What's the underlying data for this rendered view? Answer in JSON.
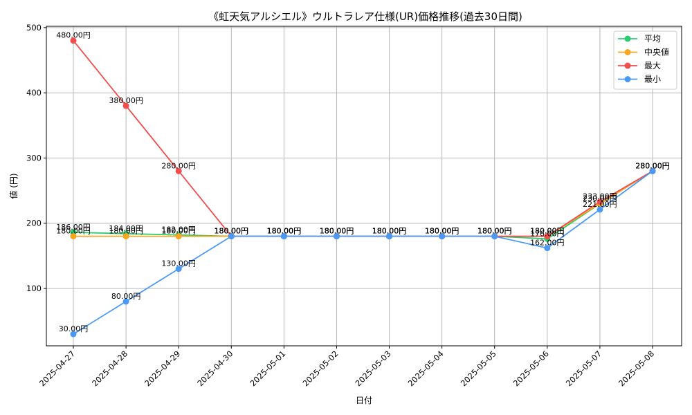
{
  "chart_data": {
    "type": "line",
    "title": "《虹天気アルシエル》ウルトラレア仕様(UR)価格推移(過去30日間)",
    "xlabel": "日付",
    "ylabel": "値 (円)",
    "ylim": [
      12,
      502
    ],
    "yticks": [
      100,
      200,
      300,
      400,
      500
    ],
    "grid": true,
    "legend_position": "top-right",
    "categories": [
      "2025-04-27",
      "2025-04-28",
      "2025-04-29",
      "2025-04-30",
      "2025-05-01",
      "2025-05-02",
      "2025-05-03",
      "2025-05-04",
      "2025-05-05",
      "2025-05-06",
      "2025-05-07",
      "2025-05-08"
    ],
    "series": [
      {
        "name": "平均",
        "color": "#2ecc71",
        "values": [
          186,
          184,
          182,
          180,
          180,
          180,
          180,
          180,
          180,
          176,
          230,
          280
        ],
        "labels": [
          "186.00円",
          "184.00円",
          "182.00円",
          "180.00円",
          "180.00円",
          "180.00円",
          "180.00円",
          "180.00円",
          "180.00円",
          "176.00円",
          "230.00円",
          "280.00円"
        ]
      },
      {
        "name": "中央値",
        "color": "#f5a623",
        "values": [
          180,
          180,
          180,
          180,
          180,
          180,
          180,
          180,
          180,
          180,
          230,
          280
        ],
        "labels": [
          "180.00円",
          "180.00円",
          "180.00円",
          "180.00円",
          "180.00円",
          "180.00円",
          "180.00円",
          "180.00円",
          "180.00円",
          "180.00円",
          "230.00円",
          "280.00円"
        ]
      },
      {
        "name": "最大",
        "color": "#f04e4e",
        "values": [
          480,
          380,
          280,
          180,
          180,
          180,
          180,
          180,
          180,
          180,
          233,
          280
        ],
        "labels": [
          "480.00円",
          "380.00円",
          "280.00円",
          "180.00円",
          "180.00円",
          "180.00円",
          "180.00円",
          "180.00円",
          "180.00円",
          "180.00円",
          "233.00円",
          "280.00円"
        ]
      },
      {
        "name": "最小",
        "color": "#4a9af5",
        "values": [
          30,
          80,
          130,
          180,
          180,
          180,
          180,
          180,
          180,
          162,
          221,
          280
        ],
        "labels": [
          "30.00円",
          "80.00円",
          "130.00円",
          "180.00円",
          "180.00円",
          "180.00円",
          "180.00円",
          "180.00円",
          "180.00円",
          "162.00円",
          "221.00円",
          "280.00円"
        ]
      }
    ]
  }
}
